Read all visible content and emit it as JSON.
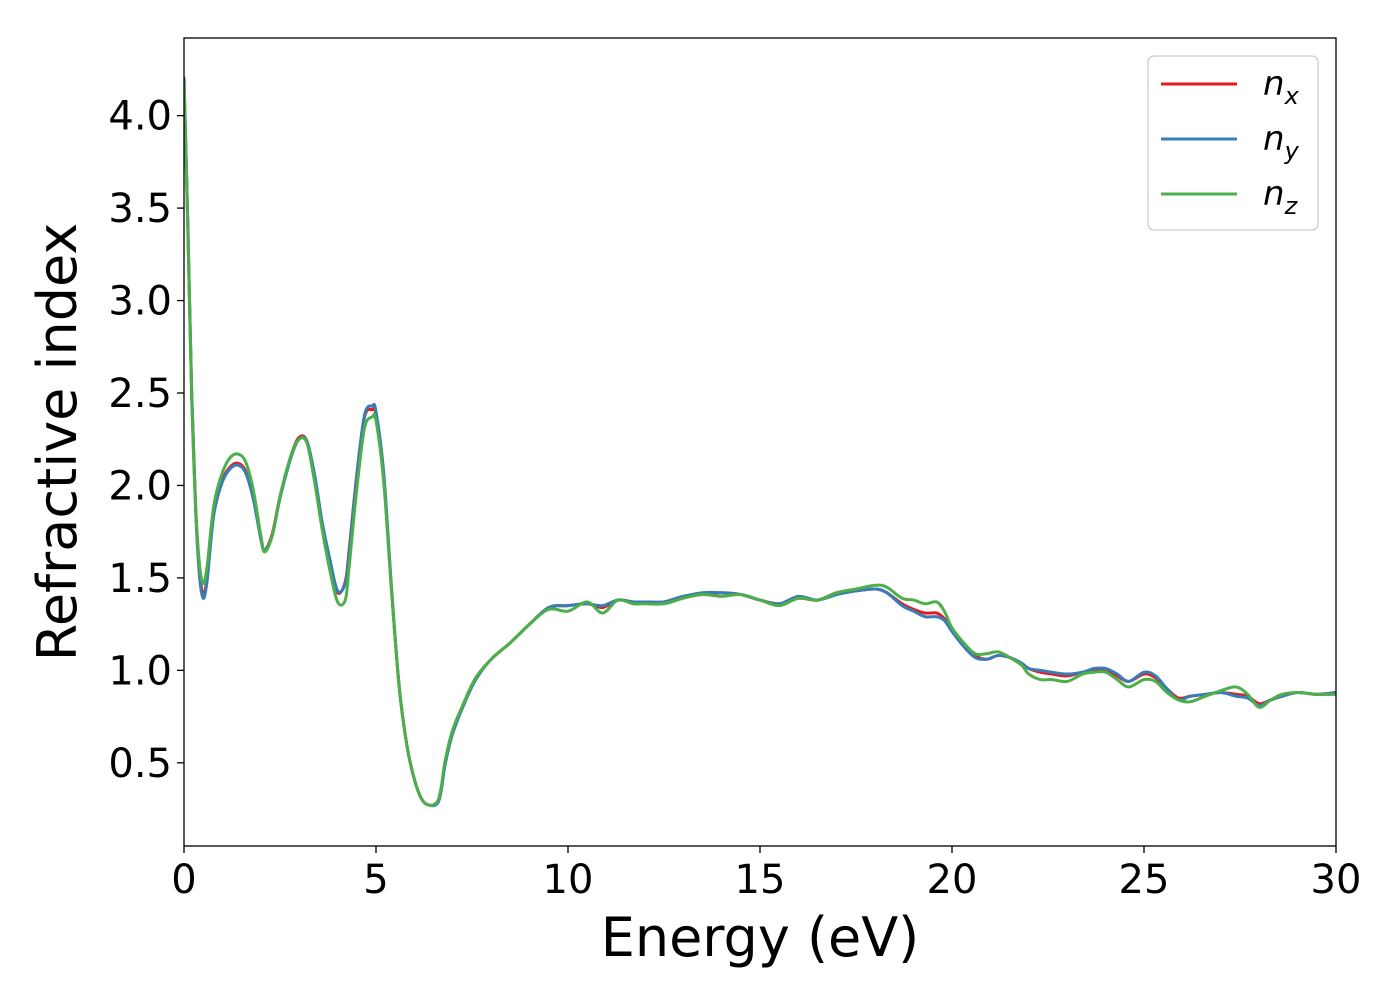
{
  "chart_data": {
    "type": "line",
    "title": "",
    "xlabel": "Energy (eV)",
    "ylabel": "Refractive index",
    "xlim": [
      0,
      30
    ],
    "ylim": [
      0.05,
      4.42
    ],
    "xticks": [
      0,
      5,
      10,
      15,
      20,
      25,
      30
    ],
    "yticks": [
      0.5,
      1.0,
      1.5,
      2.0,
      2.5,
      3.0,
      3.5,
      4.0
    ],
    "xtick_labels": [
      "0",
      "5",
      "10",
      "15",
      "20",
      "25",
      "30"
    ],
    "ytick_labels": [
      "0.5",
      "1.0",
      "1.5",
      "2.0",
      "2.5",
      "3.0",
      "3.5",
      "4.0"
    ],
    "grid": false,
    "legend_position": "top-right",
    "series": [
      {
        "name": "n_x",
        "legend_main": "n",
        "legend_sub": "x",
        "color": "#e41a1c",
        "x": [
          0,
          0.1,
          0.2,
          0.3,
          0.4,
          0.5,
          0.6,
          0.7,
          0.8,
          1.0,
          1.2,
          1.4,
          1.6,
          1.8,
          2.0,
          2.1,
          2.3,
          2.5,
          2.8,
          3.0,
          3.2,
          3.4,
          3.6,
          3.8,
          4.0,
          4.2,
          4.3,
          4.5,
          4.7,
          4.9,
          5.0,
          5.2,
          5.4,
          5.6,
          5.8,
          6.0,
          6.2,
          6.4,
          6.6,
          6.7,
          6.8,
          7.0,
          7.3,
          7.6,
          8.0,
          8.5,
          9.0,
          9.5,
          10.0,
          10.5,
          10.9,
          11.3,
          11.7,
          12.0,
          12.5,
          13.0,
          13.5,
          14.0,
          14.5,
          15.0,
          15.5,
          16.0,
          16.5,
          17.0,
          17.5,
          18.0,
          18.3,
          18.7,
          19.0,
          19.3,
          19.6,
          19.8,
          20.0,
          20.3,
          20.6,
          20.9,
          21.2,
          21.5,
          21.8,
          22.0,
          22.3,
          22.6,
          23.0,
          23.4,
          23.7,
          24.0,
          24.3,
          24.6,
          25.0,
          25.3,
          25.6,
          25.9,
          26.2,
          26.6,
          27.0,
          27.4,
          27.7,
          28.0,
          28.3,
          28.6,
          29.0,
          29.5,
          30.0
        ],
        "y": [
          4.2,
          3.4,
          2.5,
          1.9,
          1.55,
          1.41,
          1.5,
          1.72,
          1.88,
          2.03,
          2.1,
          2.12,
          2.08,
          1.94,
          1.72,
          1.65,
          1.74,
          1.94,
          2.17,
          2.26,
          2.24,
          2.05,
          1.78,
          1.58,
          1.42,
          1.48,
          1.65,
          2.06,
          2.37,
          2.41,
          2.38,
          2.05,
          1.45,
          0.92,
          0.6,
          0.41,
          0.3,
          0.27,
          0.29,
          0.36,
          0.5,
          0.67,
          0.83,
          0.96,
          1.06,
          1.15,
          1.25,
          1.34,
          1.35,
          1.36,
          1.34,
          1.38,
          1.37,
          1.37,
          1.37,
          1.4,
          1.41,
          1.42,
          1.41,
          1.38,
          1.36,
          1.39,
          1.38,
          1.42,
          1.43,
          1.44,
          1.42,
          1.36,
          1.33,
          1.31,
          1.31,
          1.28,
          1.22,
          1.14,
          1.08,
          1.06,
          1.08,
          1.07,
          1.04,
          1.01,
          0.99,
          0.98,
          0.97,
          0.99,
          1.0,
          1.0,
          0.97,
          0.94,
          0.98,
          0.96,
          0.9,
          0.85,
          0.86,
          0.87,
          0.88,
          0.87,
          0.86,
          0.82,
          0.84,
          0.86,
          0.88,
          0.87,
          0.88
        ]
      },
      {
        "name": "n_y",
        "legend_main": "n",
        "legend_sub": "y",
        "color": "#377eb8",
        "x": [
          0,
          0.1,
          0.2,
          0.3,
          0.4,
          0.5,
          0.6,
          0.7,
          0.8,
          1.0,
          1.2,
          1.4,
          1.6,
          1.8,
          2.0,
          2.1,
          2.3,
          2.5,
          2.8,
          3.0,
          3.2,
          3.4,
          3.6,
          3.8,
          4.0,
          4.2,
          4.3,
          4.5,
          4.7,
          4.9,
          5.0,
          5.2,
          5.4,
          5.6,
          5.8,
          6.0,
          6.2,
          6.4,
          6.6,
          6.7,
          6.8,
          7.0,
          7.3,
          7.6,
          8.0,
          8.5,
          9.0,
          9.5,
          10.0,
          10.5,
          10.9,
          11.3,
          11.7,
          12.0,
          12.5,
          13.0,
          13.5,
          14.0,
          14.5,
          15.0,
          15.5,
          16.0,
          16.5,
          17.0,
          17.5,
          18.0,
          18.3,
          18.7,
          19.0,
          19.3,
          19.6,
          19.8,
          20.0,
          20.3,
          20.6,
          20.9,
          21.2,
          21.5,
          21.8,
          22.0,
          22.3,
          22.6,
          23.0,
          23.4,
          23.7,
          24.0,
          24.3,
          24.6,
          25.0,
          25.3,
          25.6,
          25.9,
          26.2,
          26.6,
          27.0,
          27.4,
          27.7,
          28.0,
          28.3,
          28.6,
          29.0,
          29.5,
          30.0
        ],
        "y": [
          4.21,
          3.42,
          2.5,
          1.88,
          1.52,
          1.39,
          1.48,
          1.7,
          1.87,
          2.02,
          2.09,
          2.11,
          2.07,
          1.93,
          1.71,
          1.65,
          1.73,
          1.93,
          2.16,
          2.25,
          2.24,
          2.06,
          1.8,
          1.6,
          1.43,
          1.47,
          1.63,
          2.05,
          2.38,
          2.43,
          2.4,
          2.07,
          1.46,
          0.92,
          0.6,
          0.41,
          0.3,
          0.27,
          0.28,
          0.35,
          0.49,
          0.66,
          0.82,
          0.95,
          1.06,
          1.15,
          1.25,
          1.34,
          1.35,
          1.36,
          1.35,
          1.38,
          1.37,
          1.37,
          1.37,
          1.4,
          1.42,
          1.42,
          1.41,
          1.38,
          1.36,
          1.4,
          1.38,
          1.41,
          1.43,
          1.44,
          1.42,
          1.35,
          1.32,
          1.29,
          1.29,
          1.27,
          1.21,
          1.13,
          1.07,
          1.06,
          1.08,
          1.07,
          1.04,
          1.01,
          1.0,
          0.99,
          0.98,
          0.99,
          1.01,
          1.01,
          0.98,
          0.94,
          0.99,
          0.97,
          0.9,
          0.84,
          0.86,
          0.87,
          0.88,
          0.86,
          0.85,
          0.81,
          0.84,
          0.86,
          0.88,
          0.87,
          0.88
        ]
      },
      {
        "name": "n_z",
        "legend_main": "n",
        "legend_sub": "z",
        "color": "#4daf4a",
        "x": [
          0,
          0.1,
          0.2,
          0.3,
          0.4,
          0.5,
          0.6,
          0.7,
          0.8,
          1.0,
          1.2,
          1.4,
          1.6,
          1.8,
          2.0,
          2.1,
          2.3,
          2.5,
          2.8,
          3.0,
          3.2,
          3.4,
          3.6,
          3.8,
          4.0,
          4.2,
          4.3,
          4.5,
          4.7,
          4.9,
          5.0,
          5.2,
          5.4,
          5.6,
          5.8,
          6.0,
          6.2,
          6.4,
          6.6,
          6.7,
          6.8,
          7.0,
          7.3,
          7.6,
          8.0,
          8.5,
          9.0,
          9.5,
          10.0,
          10.5,
          10.9,
          11.3,
          11.7,
          12.0,
          12.5,
          13.0,
          13.5,
          14.0,
          14.5,
          15.0,
          15.5,
          16.0,
          16.5,
          17.0,
          17.5,
          18.0,
          18.3,
          18.7,
          19.0,
          19.3,
          19.6,
          19.8,
          20.0,
          20.3,
          20.6,
          20.9,
          21.2,
          21.5,
          21.8,
          22.0,
          22.3,
          22.6,
          23.0,
          23.4,
          23.7,
          24.0,
          24.3,
          24.6,
          25.0,
          25.3,
          25.6,
          25.9,
          26.2,
          26.6,
          27.0,
          27.4,
          27.7,
          28.0,
          28.3,
          28.6,
          29.0,
          29.5,
          30.0
        ],
        "y": [
          4.18,
          3.38,
          2.48,
          1.9,
          1.58,
          1.47,
          1.56,
          1.76,
          1.92,
          2.07,
          2.15,
          2.17,
          2.13,
          1.98,
          1.73,
          1.64,
          1.73,
          1.94,
          2.17,
          2.25,
          2.23,
          2.02,
          1.76,
          1.54,
          1.37,
          1.38,
          1.56,
          1.98,
          2.31,
          2.37,
          2.35,
          2.02,
          1.44,
          0.92,
          0.6,
          0.41,
          0.3,
          0.27,
          0.29,
          0.37,
          0.51,
          0.68,
          0.83,
          0.96,
          1.06,
          1.15,
          1.25,
          1.33,
          1.32,
          1.37,
          1.31,
          1.38,
          1.36,
          1.36,
          1.36,
          1.39,
          1.41,
          1.4,
          1.41,
          1.38,
          1.35,
          1.39,
          1.38,
          1.42,
          1.44,
          1.46,
          1.45,
          1.39,
          1.38,
          1.36,
          1.37,
          1.32,
          1.23,
          1.15,
          1.09,
          1.09,
          1.1,
          1.07,
          1.03,
          0.98,
          0.95,
          0.95,
          0.94,
          0.98,
          0.99,
          0.99,
          0.95,
          0.91,
          0.95,
          0.94,
          0.88,
          0.84,
          0.83,
          0.86,
          0.89,
          0.91,
          0.87,
          0.8,
          0.84,
          0.87,
          0.88,
          0.87,
          0.87
        ]
      }
    ]
  }
}
